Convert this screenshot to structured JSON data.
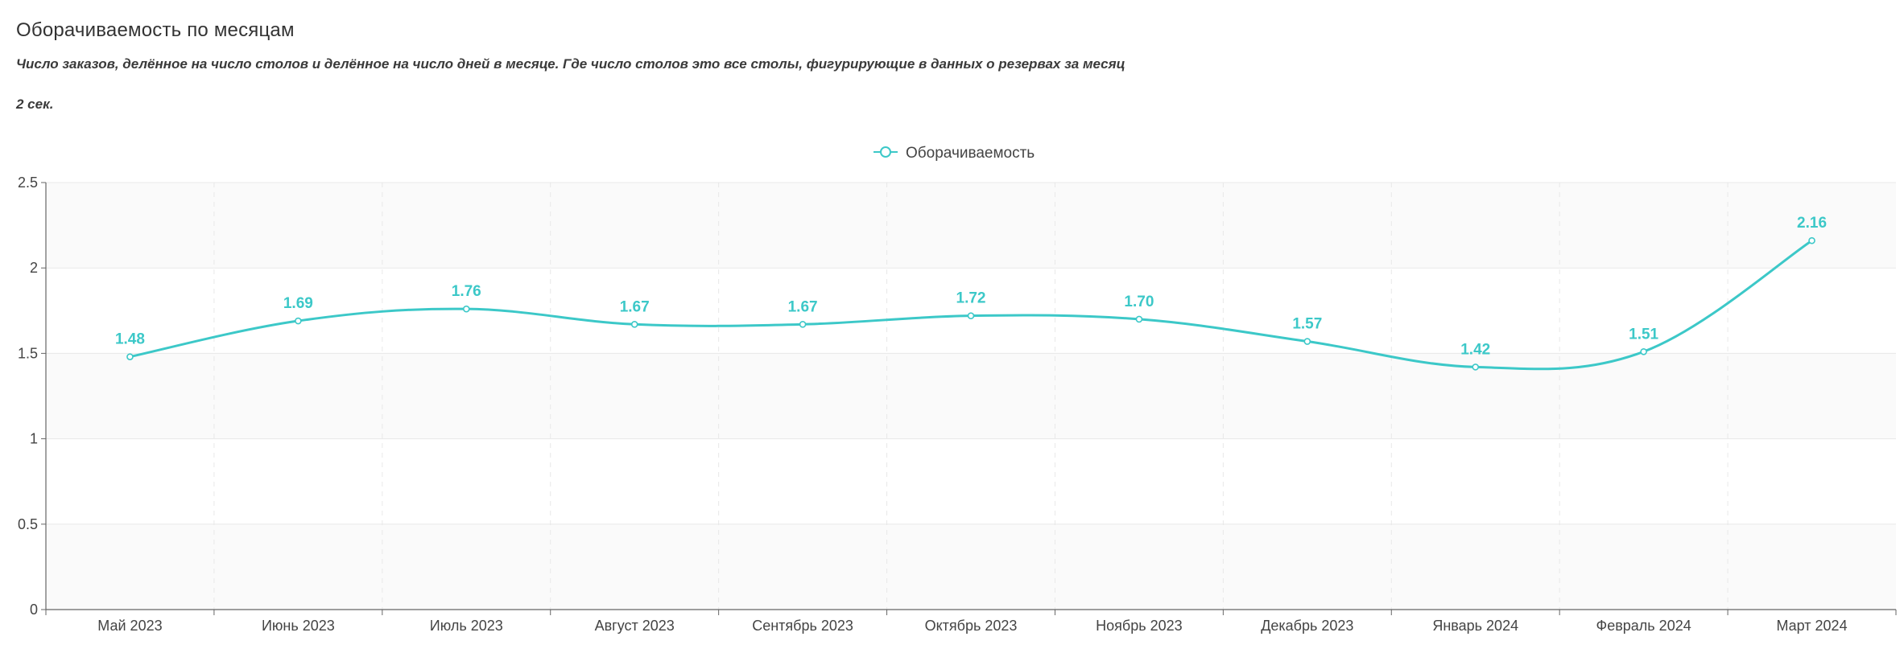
{
  "header": {
    "title": "Оборачиваемость по месяцам",
    "subtitle": "Число заказов, делённое на число столов и делённое на число дней в месяце. Где число столов это все столы, фигурирующие в данных о резервах за месяц",
    "elapsed": "2 сек."
  },
  "colors": {
    "series": "#3cc8c8",
    "grid": "#e8e8e8",
    "band": "#fafafa",
    "axis": "#666666"
  },
  "chart_data": {
    "type": "line",
    "smooth": true,
    "title": "",
    "xlabel": "",
    "ylabel": "",
    "ylim": [
      0,
      2.5
    ],
    "y_ticks": [
      "0",
      "0.5",
      "1",
      "1.5",
      "2",
      "2.5"
    ],
    "categories": [
      "Май 2023",
      "Июнь 2023",
      "Июль 2023",
      "Август 2023",
      "Сентябрь 2023",
      "Октябрь 2023",
      "Ноябрь 2023",
      "Декабрь 2023",
      "Январь 2024",
      "Февраль 2024",
      "Март 2024"
    ],
    "series": [
      {
        "name": "Оборачиваемость",
        "values": [
          1.48,
          1.69,
          1.76,
          1.67,
          1.67,
          1.72,
          1.7,
          1.57,
          1.42,
          1.51,
          2.16
        ],
        "labels": [
          "1.48",
          "1.69",
          "1.76",
          "1.67",
          "1.67",
          "1.72",
          "1.70",
          "1.57",
          "1.42",
          "1.51",
          "2.16"
        ]
      }
    ],
    "legend_position": "top-center",
    "grid": true
  }
}
